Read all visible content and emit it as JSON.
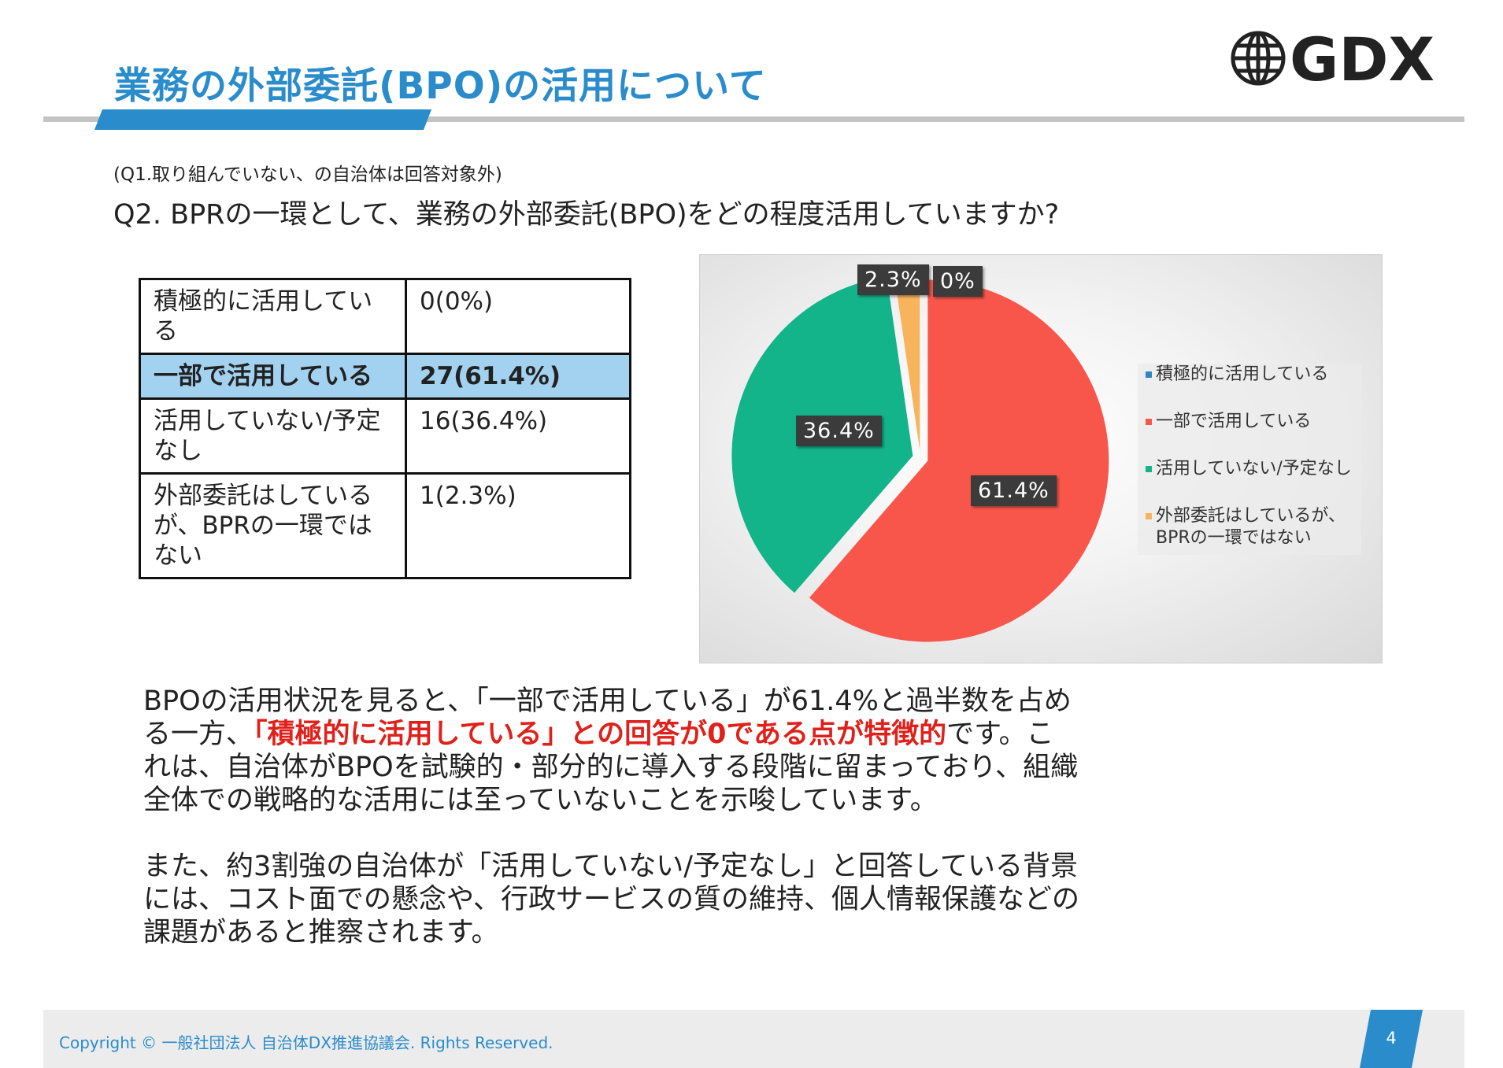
{
  "header": {
    "title": "業務の外部委託(BPO)の活用について",
    "logo_text": "GDX",
    "accent_color": "#2a8ccb"
  },
  "note": "(Q1.取り組んでいない、の自治体は回答対象外)",
  "question": "Q2. BPRの一環として、業務の外部委託(BPO)をどの程度活用していますか?",
  "table": {
    "rows": [
      {
        "label": "積極的に活用している",
        "value": "0(0%)",
        "highlight": false
      },
      {
        "label": "一部で活用している",
        "value": "27(61.4%)",
        "highlight": true
      },
      {
        "label": "活用していない/予定なし",
        "value": "16(36.4%)",
        "highlight": false
      },
      {
        "label": "外部委託はしているが、BPRの一環ではない",
        "value": "1(2.3%)",
        "highlight": false
      }
    ]
  },
  "chart_data": {
    "type": "pie",
    "categories": [
      "積極的に活用している",
      "一部で活用している",
      "活用していない/予定なし",
      "外部委託はしているが、BPRの一環ではない"
    ],
    "values": [
      0,
      61.4,
      36.4,
      2.3
    ],
    "counts": [
      0,
      27,
      16,
      1
    ],
    "data_labels": [
      "0%",
      "61.4%",
      "36.4%",
      "2.3%"
    ],
    "colors": [
      "#2e86c1",
      "#f8564b",
      "#13b48a",
      "#f7b45c"
    ],
    "legend_placement": "right",
    "legend": [
      "積極的に活用している",
      "一部で活用している",
      "活用していない/予定なし",
      "外部委託はしているが、BPRの一環ではない"
    ]
  },
  "body": {
    "p1_before": "BPOの活用状況を見ると、「一部で活用している」が61.4%と過半数を占める一方、",
    "p1_emph": "「積極的に活用している」との回答が0である点が特徴的",
    "p1_after": "です。これは、自治体がBPOを試験的・部分的に導入する段階に留まっており、組織全体での戦略的な活用には至っていないことを示唆しています。",
    "p2": "また、約3割強の自治体が「活用していない/予定なし」と回答している背景には、コスト面での懸念や、行政サービスの質の維持、個人情報保護などの課題があると推察されます。"
  },
  "footer": {
    "copyright": "Copyright © 一般社団法人 自治体DX推進協議会. Rights Reserved.",
    "page_number": "4"
  }
}
